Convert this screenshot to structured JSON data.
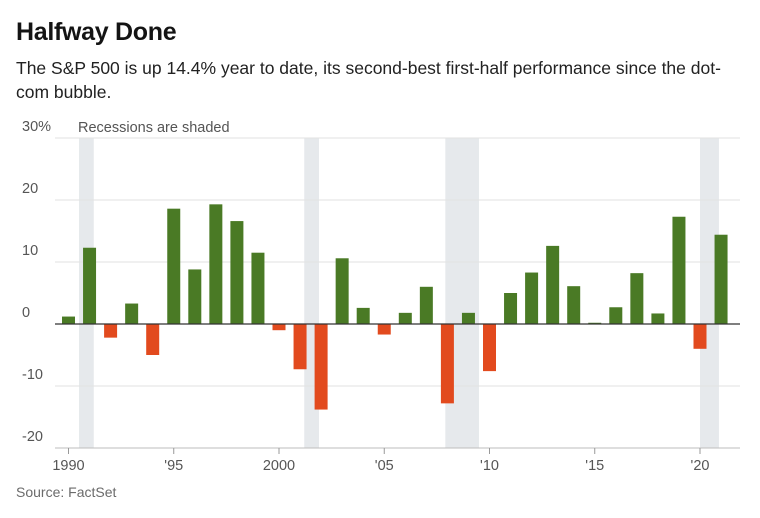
{
  "header": {
    "title": "Halfway Done",
    "subtitle": "The S&P 500 is up 14.4% year to date, its second-best first-half performance since the dot-com bubble."
  },
  "footer": {
    "source": "Source: FactSet"
  },
  "colors": {
    "positive": "#4a7a25",
    "negative": "#e24a1e",
    "recession": "#e6e9ec",
    "grid": "#e2e2e2",
    "zero": "#333333"
  },
  "chart_data": {
    "type": "bar",
    "title": "Halfway Done",
    "note": "Recessions are shaded",
    "xlabel": "",
    "ylabel": "",
    "ylim": [
      -20,
      30
    ],
    "y_ticks": [
      {
        "value": 30,
        "label": "30%"
      },
      {
        "value": 20,
        "label": "20"
      },
      {
        "value": 10,
        "label": "10"
      },
      {
        "value": 0,
        "label": "0"
      },
      {
        "value": -10,
        "label": "-10"
      },
      {
        "value": -20,
        "label": "-20"
      }
    ],
    "x_ticks": [
      {
        "value": 1990,
        "label": "1990"
      },
      {
        "value": 1995,
        "label": "'95"
      },
      {
        "value": 2000,
        "label": "2000"
      },
      {
        "value": 2005,
        "label": "'05"
      },
      {
        "value": 2010,
        "label": "'10"
      },
      {
        "value": 2015,
        "label": "'15"
      },
      {
        "value": 2020,
        "label": "'20"
      }
    ],
    "recessions": [
      [
        1990.5,
        1991.2
      ],
      [
        2001.2,
        2001.9
      ],
      [
        2007.9,
        2009.5
      ],
      [
        2020.0,
        2020.9
      ]
    ],
    "categories": [
      1990,
      1991,
      1992,
      1993,
      1994,
      1995,
      1996,
      1997,
      1998,
      1999,
      2000,
      2001,
      2002,
      2003,
      2004,
      2005,
      2006,
      2007,
      2008,
      2009,
      2010,
      2011,
      2012,
      2013,
      2014,
      2015,
      2016,
      2017,
      2018,
      2019,
      2020,
      2021
    ],
    "values": [
      1.2,
      12.3,
      -2.2,
      3.3,
      -5.0,
      18.6,
      8.8,
      19.3,
      16.6,
      11.5,
      -1.0,
      -7.3,
      -13.8,
      10.6,
      2.6,
      -1.7,
      1.8,
      6.0,
      -12.8,
      1.8,
      -7.6,
      5.0,
      8.3,
      12.6,
      6.1,
      0.2,
      2.7,
      8.2,
      1.7,
      17.3,
      -4.0,
      14.4
    ],
    "series": [
      {
        "name": "S&P 500 first-half change (%)",
        "values": [
          1.2,
          12.3,
          -2.2,
          3.3,
          -5.0,
          18.6,
          8.8,
          19.3,
          16.6,
          11.5,
          -1.0,
          -7.3,
          -13.8,
          10.6,
          2.6,
          -1.7,
          1.8,
          6.0,
          -12.8,
          1.8,
          -7.6,
          5.0,
          8.3,
          12.6,
          6.1,
          0.2,
          2.7,
          8.2,
          1.7,
          17.3,
          -4.0,
          14.4
        ]
      }
    ]
  }
}
